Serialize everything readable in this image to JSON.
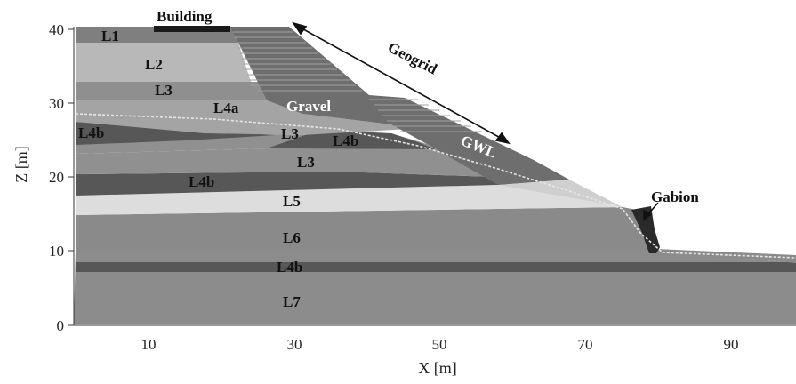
{
  "axes": {
    "xlabel": "X [m]",
    "ylabel": "Z [m]",
    "xticks": [
      "10",
      "30",
      "50",
      "70",
      "90"
    ],
    "yticks": [
      "0",
      "10",
      "20",
      "30",
      "40"
    ]
  },
  "structures": {
    "building": "Building",
    "geogrid": "Geogrid",
    "gravel": "Gravel",
    "gabion": "Gabion",
    "gwl": "GWL"
  },
  "layers": {
    "L1": "L1",
    "L2": "L2",
    "L3_top": "L3",
    "L4a": "L4a",
    "L4b_left": "L4b",
    "L3_mid": "L3",
    "L4b_mid": "L4b",
    "L3_low": "L3",
    "L4b_wide": "L4b",
    "L5": "L5",
    "L6": "L6",
    "L4b_deep": "L4b",
    "L7": "L7"
  },
  "colors": {
    "background": "#ffffff",
    "L1": "#7f7f7f",
    "L2": "#b8b8b8",
    "L3": "#909090",
    "L4a": "#a4a4a4",
    "L4b": "#575757",
    "L5": "#dddddd",
    "L6": "#8a8a8a",
    "L7": "#8c8c8c",
    "gravel": "#6e6e6e",
    "gabion": "#2a2a2a",
    "building": "#1a1a1a"
  }
}
